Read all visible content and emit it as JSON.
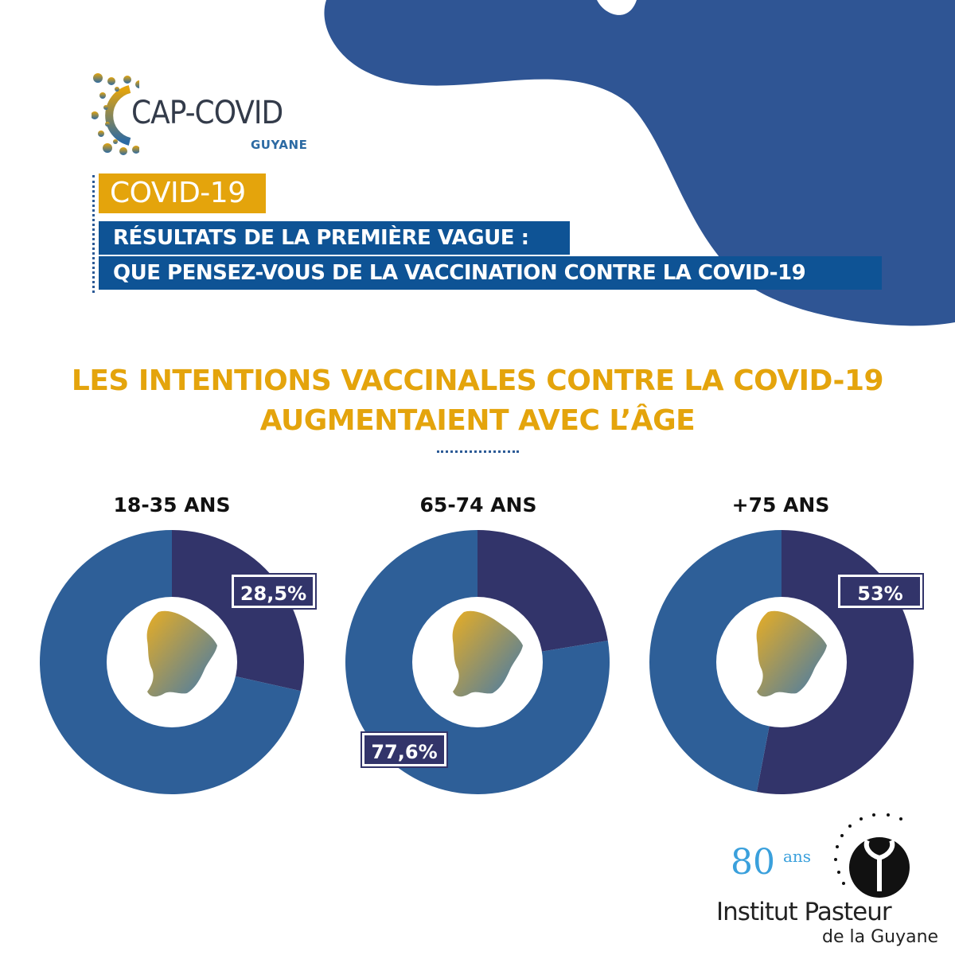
{
  "brand": {
    "logo_title": "CAP-COVID",
    "logo_subtitle": "GUYANE"
  },
  "header": {
    "tag": "COVID-19",
    "subtitle_line1": "RÉSULTATS DE LA PREMIÈRE VAGUE :",
    "subtitle_line2": "QUE PENSEZ-VOUS DE LA VACCINATION CONTRE LA COVID-19"
  },
  "headline": {
    "line1": "LES INTENTIONS VACCINALES CONTRE LA COVID-19",
    "line2": "AUGMENTAIENT AVEC L’ÂGE"
  },
  "colors": {
    "accent": "#e4a40c",
    "navy": "#0e5395",
    "blob": "#2f5594",
    "slice_highlight": "#32346a",
    "slice_rest": "#2e5f98"
  },
  "chart_data": [
    {
      "type": "pie",
      "title": "18-35 ANS",
      "values": [
        28.5,
        71.5
      ],
      "label": "28,5%",
      "labeled_slice": 0
    },
    {
      "type": "pie",
      "title": "65-74 ANS",
      "values": [
        22.4,
        77.6
      ],
      "label": "77,6%",
      "labeled_slice": 1
    },
    {
      "type": "pie",
      "title": "+75 ANS",
      "values": [
        53,
        47
      ],
      "label": "53%",
      "labeled_slice": 0
    }
  ],
  "footer": {
    "anniversary_number": "80",
    "anniversary_unit": "ans",
    "institute_name": "Institut Pasteur",
    "institute_location": "de la Guyane"
  }
}
